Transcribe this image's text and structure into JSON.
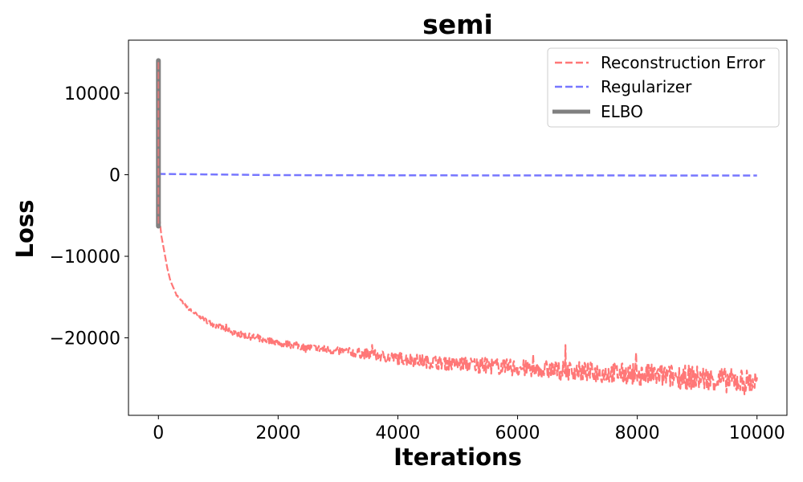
{
  "chart_data": {
    "type": "line",
    "title": "semi",
    "xlabel": "Iterations",
    "ylabel": "Loss",
    "xlim": [
      -500,
      10500
    ],
    "ylim": [
      -29500,
      16500
    ],
    "xticks": [
      0,
      2000,
      4000,
      6000,
      8000,
      10000
    ],
    "xtick_labels": [
      "0",
      "2000",
      "4000",
      "6000",
      "8000",
      "10000"
    ],
    "yticks": [
      -20000,
      -10000,
      0,
      10000
    ],
    "ytick_labels": [
      "−20000",
      "−10000",
      "0",
      "10000"
    ],
    "legend_position": "top-right",
    "grid": false,
    "series": [
      {
        "name": "Reconstruction Error",
        "color": "#ff7777",
        "style": "dashed",
        "points": [
          [
            0,
            13800
          ],
          [
            5,
            8000
          ],
          [
            10,
            -3000
          ],
          [
            20,
            -5500
          ],
          [
            50,
            -7500
          ],
          [
            100,
            -9500
          ],
          [
            150,
            -11500
          ],
          [
            200,
            -13000
          ],
          [
            300,
            -14700
          ],
          [
            400,
            -15600
          ],
          [
            500,
            -16400
          ],
          [
            700,
            -17500
          ],
          [
            900,
            -18300
          ],
          [
            1200,
            -19200
          ],
          [
            1500,
            -19800
          ],
          [
            2000,
            -20600
          ],
          [
            2500,
            -21200
          ],
          [
            3000,
            -21600
          ],
          [
            3500,
            -22000
          ],
          [
            4000,
            -22500
          ],
          [
            4500,
            -22900
          ],
          [
            5000,
            -23200
          ],
          [
            5500,
            -23400
          ],
          [
            6000,
            -23700
          ],
          [
            6500,
            -23900
          ],
          [
            7000,
            -24100
          ],
          [
            7500,
            -24300
          ],
          [
            8000,
            -24500
          ],
          [
            8500,
            -24700
          ],
          [
            9000,
            -24900
          ],
          [
            9500,
            -25200
          ],
          [
            10000,
            -25500
          ]
        ],
        "noise_envelope": [
          [
            0,
            0
          ],
          [
            1000,
            700
          ],
          [
            3000,
            1000
          ],
          [
            4000,
            1500
          ],
          [
            5000,
            1800
          ],
          [
            6000,
            2100
          ],
          [
            7000,
            2400
          ],
          [
            8000,
            2700
          ],
          [
            9000,
            3000
          ],
          [
            10000,
            3200
          ]
        ]
      },
      {
        "name": "Regularizer",
        "color": "#7777ff",
        "style": "dashed",
        "points": [
          [
            0,
            100
          ],
          [
            2000,
            -50
          ],
          [
            5000,
            -80
          ],
          [
            10000,
            -100
          ]
        ]
      },
      {
        "name": "ELBO",
        "color": "#808080",
        "style": "solid",
        "points": [
          [
            0,
            14000
          ],
          [
            0,
            8000
          ],
          [
            0,
            -6300
          ],
          [
            0,
            10000
          ],
          [
            0,
            -4000
          ],
          [
            0,
            12000
          ],
          [
            0,
            -5800
          ],
          [
            0,
            13800
          ],
          [
            0,
            -6200
          ]
        ]
      }
    ]
  }
}
